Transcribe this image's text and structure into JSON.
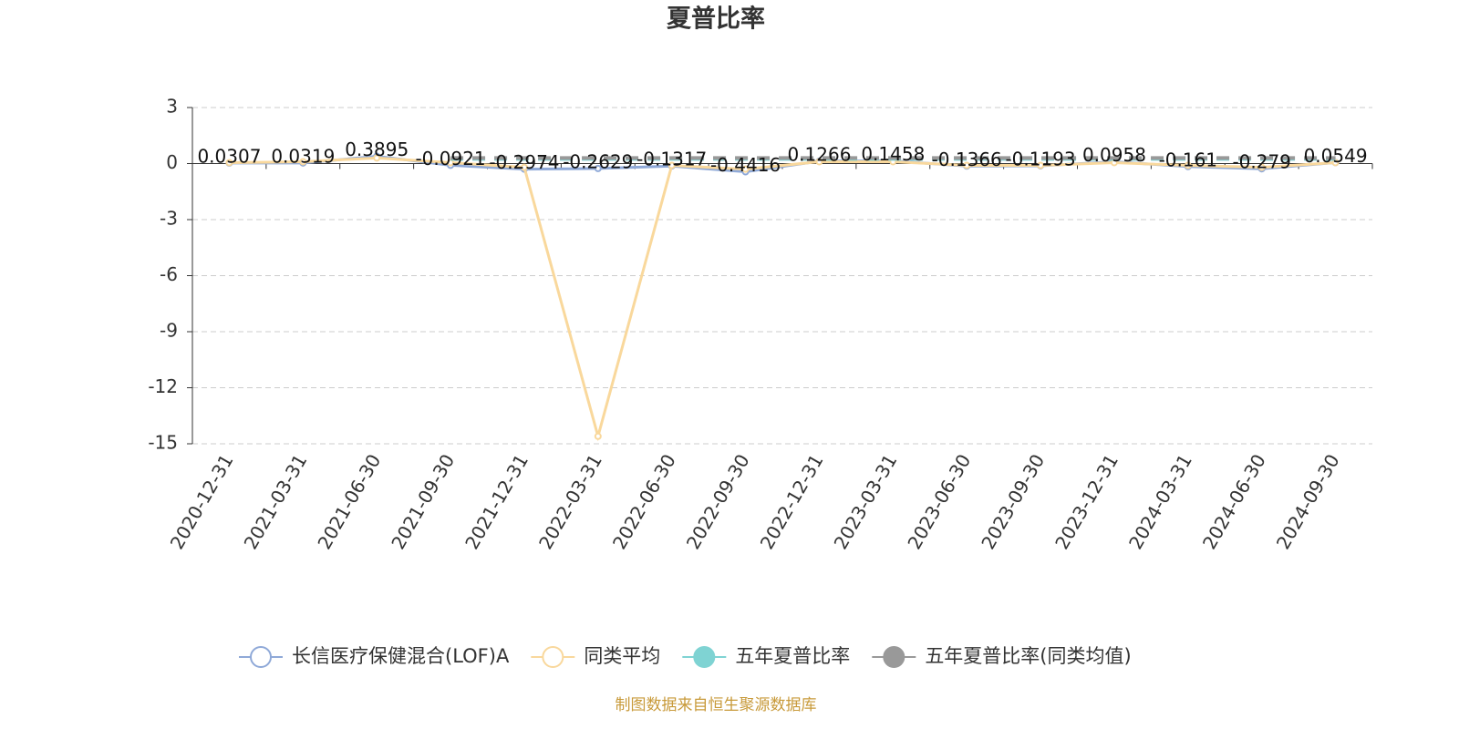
{
  "chart_data": {
    "type": "line",
    "title": "夏普比率",
    "categories": [
      "2020-12-31",
      "2021-03-31",
      "2021-06-30",
      "2021-09-30",
      "2021-12-31",
      "2022-03-31",
      "2022-06-30",
      "2022-09-30",
      "2022-12-31",
      "2023-03-31",
      "2023-06-30",
      "2023-09-30",
      "2023-12-31",
      "2024-03-31",
      "2024-06-30",
      "2024-09-30"
    ],
    "series": [
      {
        "name": "长信医疗保健混合(LOF)A",
        "color": "#8fa9d8",
        "values": [
          0.0307,
          0.0319,
          0.3895,
          -0.0921,
          -0.2974,
          -0.2629,
          -0.1317,
          -0.4416,
          0.1266,
          0.1458,
          -0.1366,
          -0.1193,
          0.0958,
          -0.161,
          -0.279,
          0.0549
        ]
      },
      {
        "name": "同类平均",
        "color": "#f9d89c",
        "values": [
          0.05,
          0.1,
          0.3,
          0.05,
          -0.2,
          -14.6,
          -0.1,
          -0.3,
          0.1,
          0.1,
          -0.1,
          -0.1,
          0.05,
          -0.1,
          -0.2,
          0.05
        ]
      },
      {
        "name": "五年夏普比率",
        "color": "#7fd3d3",
        "values": [
          null,
          null,
          null,
          0.25,
          0.25,
          0.25,
          0.25,
          0.25,
          0.25,
          0.25,
          0.25,
          0.25,
          0.25,
          0.25,
          0.25,
          0.25
        ]
      },
      {
        "name": "五年夏普比率(同类均值)",
        "color": "#999999",
        "values": [
          null,
          null,
          null,
          0.3,
          0.3,
          0.3,
          0.3,
          0.3,
          0.3,
          0.3,
          0.3,
          0.3,
          0.3,
          0.3,
          0.3,
          0.3
        ]
      }
    ],
    "ylim": [
      -15,
      3
    ],
    "yticks": [
      -15,
      -12,
      -9,
      -6,
      -3,
      0,
      3
    ],
    "grid": true,
    "source": "制图数据来自恒生聚源数据库"
  }
}
